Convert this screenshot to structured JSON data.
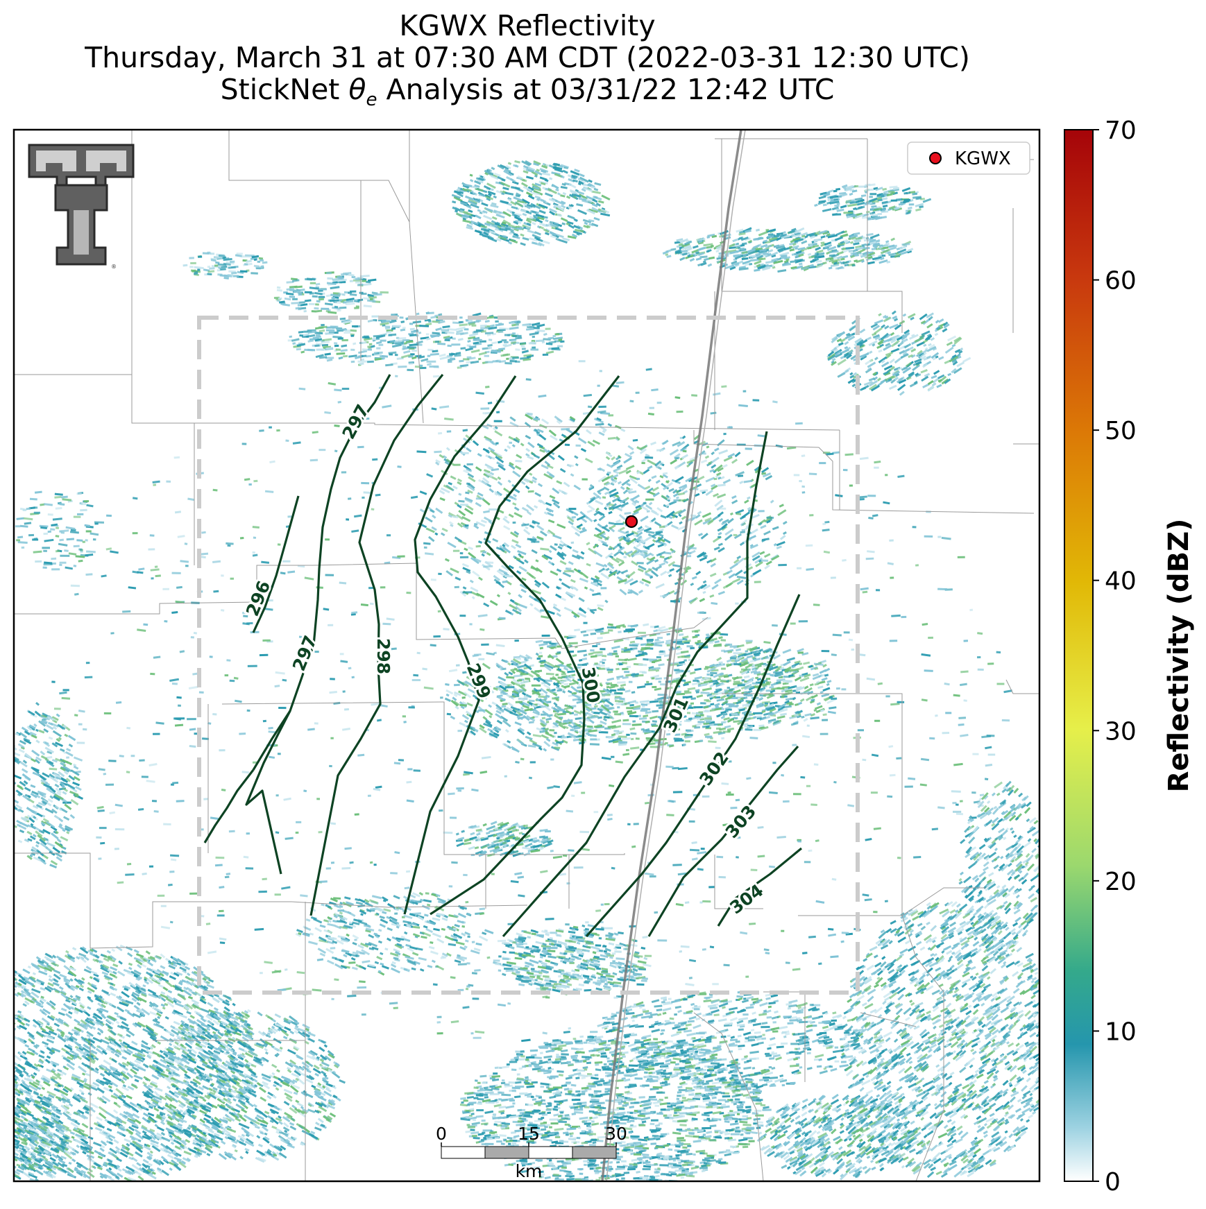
{
  "title": {
    "line1": "KGWX Reflectivity",
    "line2": "Thursday, March 31 at 07:30 AM CDT (2022-03-31 12:30 UTC)",
    "line3_prefix": "StickNet ",
    "line3_theta": "θ",
    "line3_sub": "e",
    "line3_suffix": " Analysis at 03/31/22 12:42 UTC"
  },
  "legend": {
    "radar_label": "KGWX",
    "marker_color": "#e8101e"
  },
  "colorbar": {
    "label": "Reflectivity (dBZ)",
    "min": 0,
    "max": 70,
    "ticks": [
      "0",
      "10",
      "20",
      "30",
      "40",
      "50",
      "60",
      "70"
    ]
  },
  "scale_bar": {
    "ticks": [
      "0",
      "15",
      "30"
    ],
    "unit": "km"
  },
  "contour_labels": [
    "296",
    "297",
    "297",
    "298",
    "299",
    "300",
    "301",
    "302",
    "303",
    "304"
  ],
  "colors": {
    "contour": "#0d4323",
    "echo_primary": "#2a9bb0",
    "echo_light": "#7fc3d6",
    "echo_green": "#6cbf7a",
    "analysis_box": "#c8c8c8",
    "county_lines": "#9a9a9a",
    "highway": "#888888"
  },
  "logo": {
    "name": "texas-tech-double-t-logo",
    "mark": "®"
  }
}
